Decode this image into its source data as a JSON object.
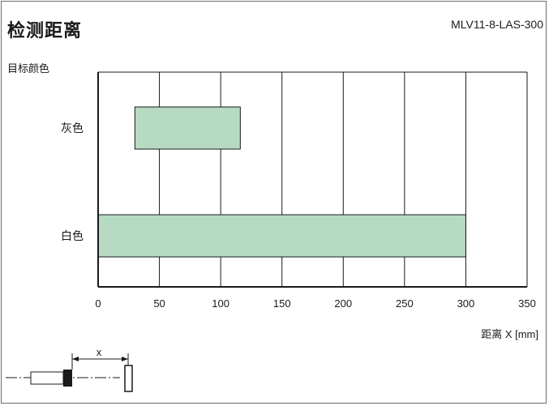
{
  "title": "检测距离",
  "model": "MLV11-8-LAS-300",
  "chart_data": {
    "type": "bar",
    "orientation": "horizontal",
    "categories": [
      "灰色",
      "白色"
    ],
    "ranges": [
      {
        "category": "灰色",
        "start": 30,
        "end": 116
      },
      {
        "category": "白色",
        "start": 0,
        "end": 300
      }
    ],
    "ylabel": "目标颜色",
    "xlabel": "距离 X [mm]",
    "xlim": [
      0,
      350
    ],
    "xticks": [
      0,
      50,
      100,
      150,
      200,
      250,
      300,
      350
    ],
    "grid": true,
    "bar_color": "#b6dbc2"
  },
  "diagram": {
    "distance_label": "x"
  }
}
